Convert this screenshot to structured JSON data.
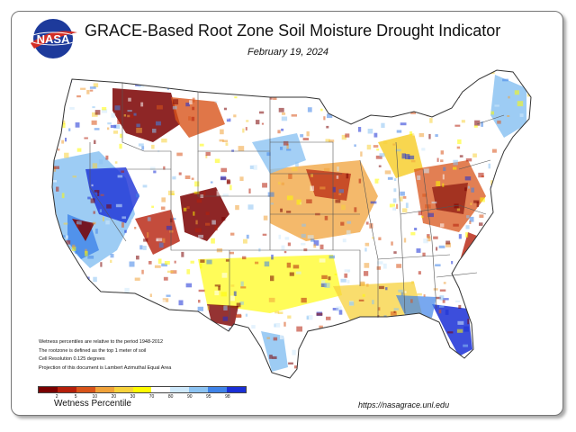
{
  "header": {
    "title": "GRACE-Based Root Zone Soil  Moisture Drought Indicator",
    "date": "February 19, 2024",
    "logo_text": "NASA"
  },
  "notes": [
    "Wetness percentiles are relative to the period 1948-2012",
    "The rootzone is defined as the top 1 meter of soil",
    "Cell Resolution 0.125 degrees",
    "Projection of this document is Lambert Azimuthal Equal Area"
  ],
  "legend": {
    "title": "Wetness Percentile",
    "ticks": [
      "2",
      "5",
      "10",
      "20",
      "30",
      "70",
      "80",
      "90",
      "95",
      "98"
    ],
    "colors": [
      "#7a0000",
      "#b51f0b",
      "#d8541a",
      "#f0a23a",
      "#f7d23c",
      "#fffb00",
      "#ffffff",
      "#cfe9fb",
      "#8cc3f2",
      "#3f83e8",
      "#1a2fd6"
    ]
  },
  "footer": {
    "url": "https://nasagrace.unl.edu"
  },
  "map": {
    "name": "Contiguous United States",
    "colors": {
      "dark_red": "#7a0000",
      "red": "#b51f0b",
      "orange_red": "#d8541a",
      "orange": "#f0a23a",
      "light_orange": "#f7d23c",
      "yellow": "#fffb00",
      "white": "#ffffff",
      "pale_blue": "#cfe9fb",
      "light_blue": "#8cc3f2",
      "blue": "#3f83e8",
      "dark_blue": "#1a2fd6",
      "borders": "#555555"
    }
  }
}
